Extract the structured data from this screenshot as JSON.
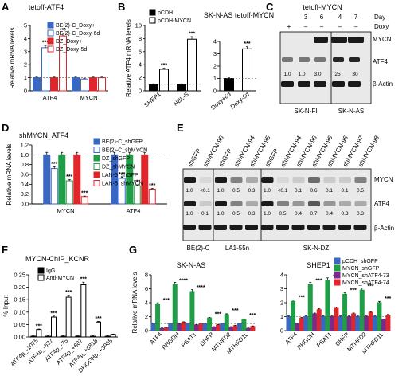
{
  "colors": {
    "blue": "#3a66c4",
    "red": "#e0262b",
    "green": "#1f9e47",
    "purple": "#7a2a8c",
    "black": "#000000",
    "white": "#ffffff",
    "blot_bg": "#e9e9e9",
    "band": "#1a1a1a"
  },
  "panels": {
    "A": "A",
    "B": "B",
    "C": "C",
    "D": "D",
    "E": "E",
    "F": "F",
    "G": "G"
  },
  "chart_data": [
    {
      "id": "A",
      "type": "bar",
      "title": "tetoff-ATF4",
      "ylabel": "Relative mRNA levels",
      "ylim": [
        0,
        5
      ],
      "yticks": [
        0,
        1,
        2,
        3,
        4,
        5
      ],
      "categories": [
        "ATF4",
        "MYCN"
      ],
      "series": [
        {
          "name": "BE(2)-C_Doxy+",
          "style": "blue-filled",
          "values": [
            1.0,
            1.0
          ],
          "stars": [
            "",
            ""
          ]
        },
        {
          "name": "BE(2)-C_Doxy-6d",
          "style": "blue-open",
          "values": [
            3.3,
            0.9
          ],
          "stars": [
            "***",
            ""
          ]
        },
        {
          "name": "DZ_Doxy+",
          "style": "red-filled",
          "values": [
            1.0,
            1.0
          ],
          "stars": [
            "",
            ""
          ]
        },
        {
          "name": "DZ_Doxy-5d",
          "style": "red-open",
          "values": [
            4.2,
            1.0
          ],
          "stars": [
            "***",
            ""
          ]
        }
      ],
      "refline": 1
    },
    {
      "id": "B1",
      "type": "bar",
      "ylabel": "Relative ATF4 mRNA levels",
      "ylim": [
        0,
        10
      ],
      "yticks": [
        0,
        2,
        4,
        6,
        8,
        10
      ],
      "categories": [
        "SHEP1",
        "NBL-S"
      ],
      "series": [
        {
          "name": "pCDH",
          "style": "black-filled",
          "values": [
            1.0,
            1.0
          ],
          "stars": [
            "",
            ""
          ]
        },
        {
          "name": "pCDH-MYCN",
          "style": "black-open",
          "values": [
            3.3,
            7.9
          ],
          "stars": [
            "***",
            "***"
          ]
        }
      ],
      "refline": 1
    },
    {
      "id": "B2",
      "type": "bar",
      "title": "SK-N-AS tetoff-MYCN",
      "ylim": [
        0,
        4
      ],
      "yticks": [
        0,
        1,
        2,
        3,
        4
      ],
      "categories": [
        "Doxy+6d",
        "Doxy-6d"
      ],
      "series": [
        {
          "name": "",
          "style": "mixed",
          "values": [
            1.0,
            3.4
          ],
          "stars": [
            "",
            "***"
          ]
        }
      ],
      "refline": 1
    },
    {
      "id": "D",
      "type": "bar",
      "title": "shMYCN_ATF4",
      "ylabel": "Relative mRNA levels",
      "ylim": [
        0,
        1.2
      ],
      "yticks": [
        0.0,
        0.2,
        0.4,
        0.6,
        0.8,
        1.0,
        1.2
      ],
      "categories": [
        "MYCN",
        "ATF4"
      ],
      "series": [
        {
          "name": "BE(2)-C_shGFP",
          "style": "blue-filled",
          "values": [
            1.0,
            1.0
          ],
          "stars": [
            "",
            ""
          ]
        },
        {
          "name": "BE(2)-C_shMYCN",
          "style": "blue-open",
          "values": [
            0.72,
            0.52
          ],
          "stars": [
            "***",
            "***"
          ]
        },
        {
          "name": "DZ_shGFP",
          "style": "green-filled",
          "values": [
            1.0,
            1.0
          ],
          "stars": [
            "",
            ""
          ]
        },
        {
          "name": "DZ_shMYCN",
          "style": "green-open",
          "values": [
            0.47,
            0.37
          ],
          "stars": [
            "***",
            "***"
          ]
        },
        {
          "name": "LAN-5_shGFP",
          "style": "red-filled",
          "values": [
            1.0,
            1.0
          ],
          "stars": [
            "",
            ""
          ]
        },
        {
          "name": "LAN-5_shMYCN",
          "style": "red-open",
          "values": [
            0.15,
            0.3
          ],
          "stars": [
            "***",
            "***"
          ]
        }
      ],
      "refline": 1
    },
    {
      "id": "F",
      "type": "bar",
      "title": "MYCN-ChIP_KCNR",
      "ylabel": "% Input",
      "ylim": [
        0,
        0.25
      ],
      "yticks": [
        0.0,
        0.05,
        0.1,
        0.15,
        0.2,
        0.25
      ],
      "categories": [
        "ATF4p_-1075",
        "ATF4p_-637",
        "ATF4p_-75",
        "ATF4p_+687",
        "ATF4p_+5818",
        "DHODHp_+3965"
      ],
      "series": [
        {
          "name": "IgG",
          "style": "black-filled",
          "values": [
            0.003,
            0.003,
            0.003,
            0.003,
            0.003,
            0.003
          ],
          "stars": [
            "",
            "",
            "",
            "",
            "",
            ""
          ]
        },
        {
          "name": "Anti-MYCN",
          "style": "black-open",
          "values": [
            0.03,
            0.08,
            0.16,
            0.21,
            0.06,
            0.01
          ],
          "stars": [
            "***",
            "***",
            "***",
            "***",
            "***",
            ""
          ]
        }
      ]
    },
    {
      "id": "G1",
      "type": "bar",
      "title": "SK-N-AS",
      "ylabel": "Relative mRNA levels",
      "ylim": [
        0,
        8
      ],
      "yticks": [
        0,
        2,
        4,
        6,
        8
      ],
      "categories": [
        "ATF4",
        "PHGDH",
        "PSAT1",
        "DHFR",
        "MTHFD2",
        "MTHFD1L"
      ],
      "series": [
        {
          "name": "pCDH_shGFP",
          "style": "blue-filled",
          "values": [
            1,
            1,
            1,
            1,
            1,
            1
          ]
        },
        {
          "name": "MYCN_shGFP",
          "style": "green-filled",
          "values": [
            3.8,
            6.6,
            5.6,
            1.8,
            2.3,
            1.6
          ]
        },
        {
          "name": "MYCN_shATF4-73",
          "style": "purple-filled",
          "values": [
            0.3,
            0.9,
            0.8,
            0.5,
            0.5,
            0.3
          ]
        },
        {
          "name": "MYCN_shATF4-74",
          "style": "red-filled",
          "values": [
            0.4,
            1.2,
            1.0,
            0.8,
            0.7,
            0.6
          ]
        }
      ],
      "stars": [
        "***",
        "****",
        "****",
        "***",
        "***",
        "***"
      ],
      "refline": 1
    },
    {
      "id": "G2",
      "type": "bar",
      "title": "SHEP1",
      "ylim": [
        0,
        4
      ],
      "yticks": [
        0,
        1,
        2,
        3,
        4
      ],
      "categories": [
        "ATF4",
        "PHGDH",
        "PSAT1",
        "DHFR",
        "MTHFD2",
        "MTHFD1L"
      ],
      "series": [
        {
          "name": "pCDH_shGFP",
          "style": "blue-filled",
          "values": [
            1,
            1,
            1,
            1,
            1,
            1
          ]
        },
        {
          "name": "MYCN_shGFP",
          "style": "green-filled",
          "values": [
            2.1,
            3.3,
            3.6,
            2.6,
            2.9,
            2.0
          ]
        },
        {
          "name": "MYCN_shATF4-73",
          "style": "purple-filled",
          "values": [
            0.5,
            1.2,
            1.0,
            1.0,
            1.0,
            0.8
          ]
        },
        {
          "name": "MYCN_shATF4-74",
          "style": "red-filled",
          "values": [
            0.9,
            1.5,
            1.6,
            1.2,
            1.3,
            1.1
          ]
        }
      ],
      "stars": [
        "***",
        "***",
        "***",
        "***",
        "***",
        "***"
      ],
      "refline": 1
    }
  ],
  "blotC": {
    "title": "tetoff-MYCN",
    "day_label": "Day",
    "doxy_label": "Doxy",
    "days": [
      "",
      "3",
      "6",
      "4",
      "7"
    ],
    "doxy": [
      "+",
      "–",
      "–",
      "–",
      "–"
    ],
    "right_labels": [
      "MYCN",
      "ATF4",
      "β-Actin"
    ],
    "atf4_values": [
      "1.0",
      "1.0",
      "3.0",
      "25",
      "30",
      "1.0"
    ],
    "cell_lines": [
      "SK-N-FI",
      "SK-N-AS"
    ]
  },
  "blotE": {
    "lanes": [
      "shGFP",
      "shMYCN-95",
      "shGFP",
      "shMYCN-94",
      "shMYCN-95",
      "shGFP",
      "shMYCN-94",
      "shMYCN-95",
      "shMYCN-96",
      "shMYCN-96",
      "shMYCN-97",
      "shMYCN-98"
    ],
    "right_labels": [
      "MYCN",
      "ATF4",
      "β-Actin"
    ],
    "mycn_values": [
      "1.0",
      "<0.1",
      "1.0",
      "0.5",
      "0.3",
      "1.0",
      "<0.1",
      "0.1",
      "0.6",
      "0.1",
      "0.1",
      "0.5"
    ],
    "atf4_values": [
      "1.0",
      "0.1",
      "1.0",
      "0.5",
      "0.3",
      "1.0",
      "0.5",
      "0.4",
      "0.7",
      "0.4",
      "0.3",
      "0.3"
    ],
    "cell_lines": [
      "BE(2)-C",
      "LA1-55n",
      "SK-N-DZ"
    ]
  }
}
